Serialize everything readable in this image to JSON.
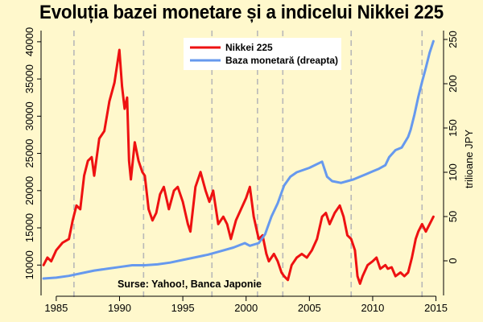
{
  "title": "Evoluția bazei monetare și a indicelui Nikkei 225",
  "source_note": "Surse: Yahoo!, Banca Japonie",
  "chart_data": {
    "type": "line",
    "title": "Evoluția bazei monetare și a indicelui Nikkei 225",
    "xlabel": "",
    "ylabel_left": "",
    "ylabel_right": "trilioane JPY",
    "xlim": [
      1983.8,
      2015.6
    ],
    "ylim_left": [
      7000,
      41500
    ],
    "ylim_right": [
      -30,
      260
    ],
    "x_ticks": [
      1985,
      1990,
      1995,
      2000,
      2005,
      2010,
      2015
    ],
    "y_ticks_left": [
      10000,
      15000,
      20000,
      25000,
      30000,
      35000,
      40000
    ],
    "y_ticks_right": [
      0,
      50,
      100,
      150,
      200,
      250
    ],
    "vertical_gridlines": [
      1986.4,
      1991.9,
      1997.3,
      2000.9,
      2002.9,
      2008.3,
      2013.9
    ],
    "grid": false,
    "legend_position": "top-center",
    "colors": {
      "nikkei": "#ee1111",
      "monetary_base": "#6699ee",
      "grid": "#b8b8b8",
      "background": "#fff8cc"
    },
    "series": [
      {
        "name": "Nikkei 225",
        "axis": "left",
        "color": "#ee1111",
        "x": [
          1984.0,
          1984.3,
          1984.6,
          1985.0,
          1985.5,
          1986.0,
          1986.3,
          1986.6,
          1986.9,
          1987.2,
          1987.5,
          1987.8,
          1988.0,
          1988.4,
          1988.8,
          1989.2,
          1989.6,
          1989.99,
          1990.2,
          1990.4,
          1990.6,
          1990.75,
          1990.9,
          1991.2,
          1991.5,
          1991.8,
          1992.0,
          1992.3,
          1992.6,
          1992.9,
          1993.2,
          1993.5,
          1993.9,
          1994.3,
          1994.6,
          1995.0,
          1995.4,
          1995.6,
          1996.0,
          1996.4,
          1996.8,
          1997.1,
          1997.4,
          1997.8,
          1998.2,
          1998.5,
          1998.8,
          1999.2,
          1999.6,
          2000.0,
          2000.3,
          2000.6,
          2001.0,
          2001.3,
          2001.6,
          2001.8,
          2002.2,
          2002.5,
          2002.8,
          2003.0,
          2003.3,
          2003.6,
          2004.0,
          2004.4,
          2004.8,
          2005.2,
          2005.6,
          2006.0,
          2006.3,
          2006.6,
          2007.0,
          2007.4,
          2007.7,
          2008.0,
          2008.3,
          2008.6,
          2008.8,
          2009.0,
          2009.2,
          2009.6,
          2010.0,
          2010.3,
          2010.6,
          2011.0,
          2011.2,
          2011.5,
          2011.8,
          2012.2,
          2012.5,
          2012.8,
          2013.1,
          2013.4,
          2013.6,
          2013.9,
          2014.2,
          2014.5,
          2014.8
        ],
        "values": [
          10000,
          11000,
          10500,
          12000,
          13000,
          13500,
          16000,
          18000,
          17500,
          22000,
          24000,
          24500,
          22000,
          27000,
          28000,
          32000,
          34500,
          38900,
          34000,
          31000,
          32500,
          24000,
          21500,
          26500,
          24000,
          22500,
          22000,
          17500,
          16000,
          17000,
          19500,
          20500,
          17500,
          20000,
          20500,
          18500,
          15500,
          14500,
          20500,
          22500,
          20000,
          18500,
          20000,
          15500,
          16500,
          15500,
          13500,
          16000,
          17500,
          19000,
          20500,
          16500,
          13500,
          14000,
          11500,
          10500,
          11500,
          10500,
          9000,
          8500,
          8000,
          10000,
          11000,
          11500,
          11000,
          12000,
          13500,
          16500,
          17000,
          15500,
          17000,
          18000,
          16500,
          14000,
          13500,
          12000,
          8500,
          7500,
          8500,
          10000,
          10500,
          11000,
          9500,
          10000,
          9500,
          9700,
          8500,
          9000,
          8500,
          9000,
          11000,
          13500,
          14500,
          15500,
          14500,
          15500,
          16500
        ]
      },
      {
        "name": "Baza monetară (dreapta)",
        "axis": "right",
        "color": "#6699ee",
        "x": [
          1984.0,
          1985.0,
          1986.0,
          1987.0,
          1988.0,
          1989.0,
          1990.0,
          1991.0,
          1992.0,
          1993.0,
          1994.0,
          1995.0,
          1996.0,
          1997.0,
          1998.0,
          1999.0,
          1999.9,
          2000.3,
          2001.0,
          2001.5,
          2002.0,
          2002.5,
          2003.0,
          2003.5,
          2004.0,
          2005.0,
          2006.0,
          2006.4,
          2006.8,
          2007.5,
          2008.0,
          2008.5,
          2009.0,
          2009.5,
          2010.0,
          2010.5,
          2011.0,
          2011.3,
          2011.8,
          2012.3,
          2012.8,
          2013.0,
          2013.3,
          2013.6,
          2013.9,
          2014.2,
          2014.5,
          2014.8
        ],
        "values": [
          -20,
          -19,
          -17,
          -14,
          -11,
          -9,
          -7,
          -5,
          -5,
          -4,
          -2,
          1,
          4,
          7,
          11,
          15,
          20,
          17,
          20,
          30,
          50,
          65,
          85,
          95,
          100,
          105,
          112,
          95,
          90,
          88,
          90,
          92,
          95,
          98,
          101,
          104,
          108,
          117,
          125,
          128,
          140,
          148,
          165,
          185,
          202,
          218,
          235,
          248
        ]
      }
    ]
  }
}
